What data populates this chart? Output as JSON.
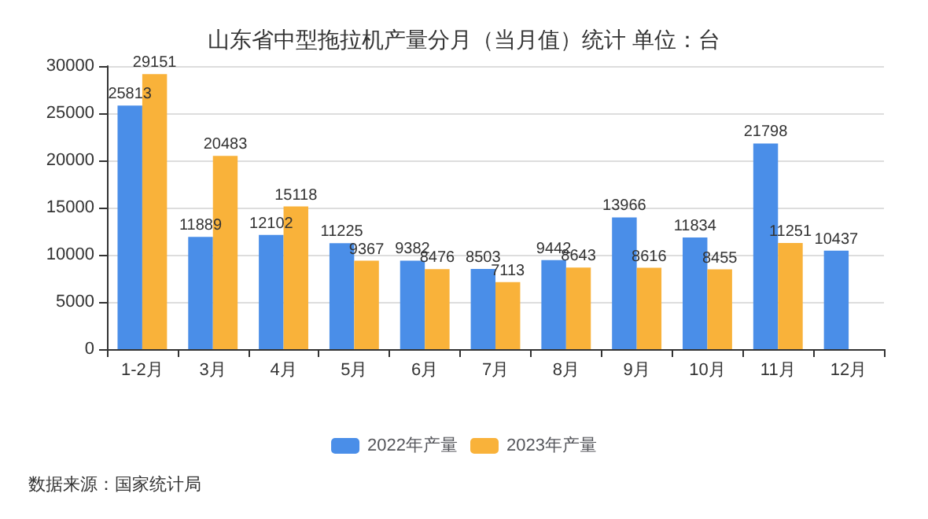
{
  "chart_data": {
    "type": "bar",
    "title": "山东省中型拖拉机产量分月（当月值）统计 单位：台",
    "categories": [
      "1-2月",
      "3月",
      "4月",
      "5月",
      "6月",
      "7月",
      "8月",
      "9月",
      "10月",
      "11月",
      "12月"
    ],
    "series": [
      {
        "name": "2022年产量",
        "color": "#4a8ee8",
        "values": [
          25813,
          11889,
          12102,
          11225,
          9382,
          8503,
          9442,
          13966,
          11834,
          21798,
          10437
        ]
      },
      {
        "name": "2023年产量",
        "color": "#f9b23a",
        "values": [
          29151,
          20483,
          15118,
          9367,
          8476,
          7113,
          8643,
          8616,
          8455,
          11251,
          null
        ]
      }
    ],
    "ylim": [
      0,
      30000
    ],
    "yticks": [
      0,
      5000,
      10000,
      15000,
      20000,
      25000,
      30000
    ],
    "grid": "y",
    "legend": "bottom",
    "data_labels": true,
    "annotations": [
      "数据来源：国家统计局"
    ]
  }
}
